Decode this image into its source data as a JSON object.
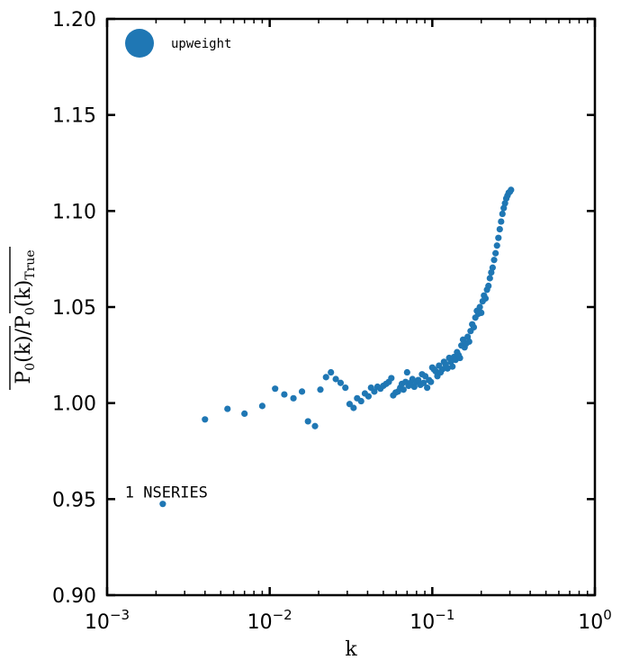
{
  "chart_data": {
    "type": "scatter",
    "title": "",
    "xlabel": "k",
    "ylabel": "P0(k) / P0(k)True",
    "ylabel_parts": {
      "p": "P",
      "sub0": "0",
      "k": "(k)",
      "slash": "/",
      "true_sub": "True"
    },
    "x_scale": "log",
    "xlim": [
      0.001,
      1
    ],
    "ylim": [
      0.9,
      1.2
    ],
    "x_ticks": [
      {
        "value": 0.001,
        "base": "10",
        "exp": "−3"
      },
      {
        "value": 0.01,
        "base": "10",
        "exp": "−2"
      },
      {
        "value": 0.1,
        "base": "10",
        "exp": "−1"
      },
      {
        "value": 1,
        "base": "10",
        "exp": "0"
      }
    ],
    "y_ticks": [
      {
        "value": 0.9,
        "label": "0.90"
      },
      {
        "value": 0.95,
        "label": "0.95"
      },
      {
        "value": 1.0,
        "label": "1.00"
      },
      {
        "value": 1.05,
        "label": "1.05"
      },
      {
        "value": 1.1,
        "label": "1.10"
      },
      {
        "value": 1.15,
        "label": "1.15"
      },
      {
        "value": 1.2,
        "label": "1.20"
      }
    ],
    "grid": false,
    "legend": {
      "position": "top-left",
      "entries": [
        "upweight"
      ]
    },
    "series": [
      {
        "name": "upweight",
        "color": "#1f77b4",
        "points": [
          [
            0.004,
            0.9915
          ],
          [
            0.0055,
            0.997
          ],
          [
            0.007,
            0.9945
          ],
          [
            0.009,
            0.9985
          ],
          [
            0.0108,
            1.0075
          ],
          [
            0.0123,
            1.0045
          ],
          [
            0.014,
            1.0025
          ],
          [
            0.0158,
            1.006
          ],
          [
            0.0172,
            0.9905
          ],
          [
            0.019,
            0.988
          ],
          [
            0.0205,
            1.007
          ],
          [
            0.0222,
            1.0135
          ],
          [
            0.0238,
            1.016
          ],
          [
            0.0255,
            1.0125
          ],
          [
            0.0273,
            1.0105
          ],
          [
            0.0292,
            1.008
          ],
          [
            0.031,
            0.9995
          ],
          [
            0.0328,
            0.9975
          ],
          [
            0.0345,
            1.0025
          ],
          [
            0.0365,
            1.001
          ],
          [
            0.0385,
            1.005
          ],
          [
            0.0405,
            1.0035
          ],
          [
            0.042,
            1.008
          ],
          [
            0.044,
            1.006
          ],
          [
            0.046,
            1.0085
          ],
          [
            0.048,
            1.0075
          ],
          [
            0.05,
            1.009
          ],
          [
            0.052,
            1.01
          ],
          [
            0.054,
            1.011
          ],
          [
            0.056,
            1.013
          ],
          [
            0.0575,
            1.004
          ],
          [
            0.0595,
            1.0055
          ],
          [
            0.0615,
            1.006
          ],
          [
            0.0635,
            1.008
          ],
          [
            0.065,
            1.01
          ],
          [
            0.0665,
            1.007
          ],
          [
            0.0685,
            1.011
          ],
          [
            0.07,
            1.016
          ],
          [
            0.0715,
            1.009
          ],
          [
            0.0735,
            1.0105
          ],
          [
            0.0755,
            1.0125
          ],
          [
            0.0775,
            1.0085
          ],
          [
            0.08,
            1.011
          ],
          [
            0.082,
            1.012
          ],
          [
            0.0845,
            1.0095
          ],
          [
            0.0865,
            1.015
          ],
          [
            0.0885,
            1.0105
          ],
          [
            0.0905,
            1.014
          ],
          [
            0.093,
            1.008
          ],
          [
            0.0955,
            1.012
          ],
          [
            0.098,
            1.011
          ],
          [
            0.1,
            1.0185
          ],
          [
            0.1025,
            1.0175
          ],
          [
            0.105,
            1.0165
          ],
          [
            0.1075,
            1.014
          ],
          [
            0.11,
            1.0195
          ],
          [
            0.1125,
            1.016
          ],
          [
            0.115,
            1.0175
          ],
          [
            0.118,
            1.0215
          ],
          [
            0.121,
            1.02
          ],
          [
            0.124,
            1.018
          ],
          [
            0.127,
            1.0235
          ],
          [
            0.13,
            1.0215
          ],
          [
            0.133,
            1.019
          ],
          [
            0.136,
            1.024
          ],
          [
            0.139,
            1.0225
          ],
          [
            0.142,
            1.0265
          ],
          [
            0.145,
            1.025
          ],
          [
            0.148,
            1.0235
          ],
          [
            0.151,
            1.03
          ],
          [
            0.1545,
            1.033
          ],
          [
            0.158,
            1.029
          ],
          [
            0.1615,
            1.031
          ],
          [
            0.165,
            1.0345
          ],
          [
            0.1685,
            1.032
          ],
          [
            0.172,
            1.0375
          ],
          [
            0.176,
            1.041
          ],
          [
            0.18,
            1.0395
          ],
          [
            0.184,
            1.0445
          ],
          [
            0.188,
            1.048
          ],
          [
            0.192,
            1.0465
          ],
          [
            0.196,
            1.05
          ],
          [
            0.2,
            1.047
          ],
          [
            0.204,
            1.053
          ],
          [
            0.208,
            1.056
          ],
          [
            0.2125,
            1.0545
          ],
          [
            0.217,
            1.059
          ],
          [
            0.2215,
            1.061
          ],
          [
            0.226,
            1.065
          ],
          [
            0.2305,
            1.068
          ],
          [
            0.235,
            1.0705
          ],
          [
            0.24,
            1.0745
          ],
          [
            0.245,
            1.078
          ],
          [
            0.25,
            1.082
          ],
          [
            0.255,
            1.086
          ],
          [
            0.26,
            1.0905
          ],
          [
            0.265,
            1.0945
          ],
          [
            0.27,
            1.0985
          ],
          [
            0.275,
            1.1015
          ],
          [
            0.28,
            1.104
          ],
          [
            0.285,
            1.1065
          ],
          [
            0.29,
            1.108
          ],
          [
            0.295,
            1.1095
          ],
          [
            0.3,
            1.11
          ],
          [
            0.305,
            1.111
          ]
        ]
      }
    ],
    "annotations": [
      {
        "text": "1 NSERIES",
        "x": 0.0022,
        "y": 0.9475
      }
    ]
  }
}
